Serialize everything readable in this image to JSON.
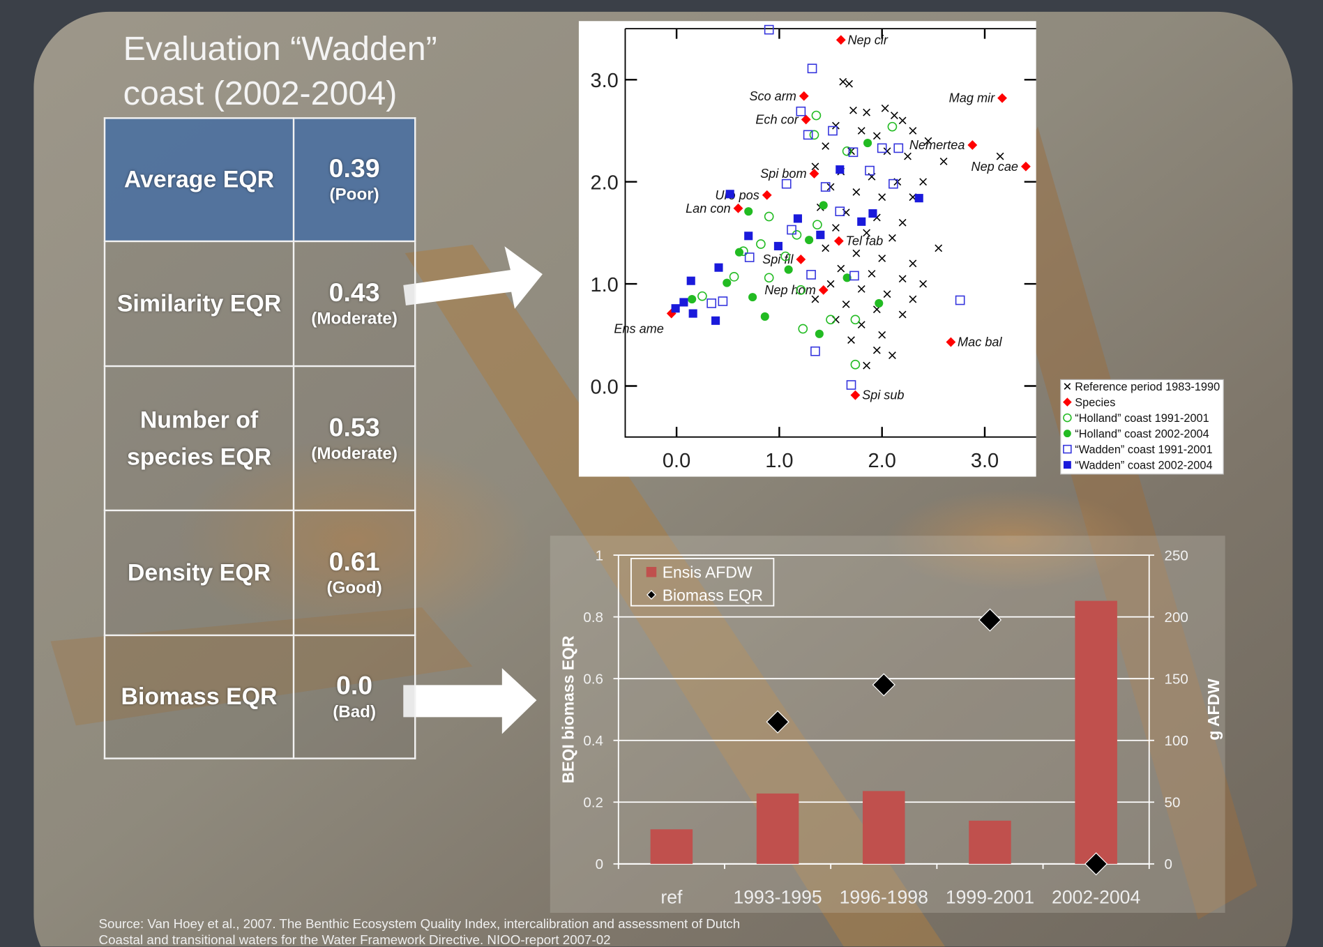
{
  "title": "Evaluation “Wadden” coast (2002-2004)",
  "table": {
    "rows": [
      [
        "Average EQR",
        "0.39",
        "(Poor)"
      ],
      [
        "Similarity EQR",
        "0.43",
        "(Moderate)"
      ],
      [
        "Number of species EQR",
        "0.53",
        "(Moderate)"
      ],
      [
        "Density EQR",
        "0.61",
        "(Good)"
      ],
      [
        "Biomass EQR",
        "0.0",
        "(Bad)"
      ]
    ]
  },
  "source": "Source: Van Hoey et al., 2007. The  Benthic Ecosystem Quality Index, intercalibration and assessment of Dutch Coastal and transitional waters for the Water Framework Directive. NIOO-report 2007-02",
  "chart_data": [
    {
      "type": "scatter",
      "xlim": [
        -0.5,
        3.5
      ],
      "ylim": [
        -0.5,
        3.5
      ],
      "xticks": [
        {
          "value": 0,
          "label": "0.0"
        },
        {
          "value": 1,
          "label": "1.0"
        },
        {
          "value": 2,
          "label": "2.0"
        },
        {
          "value": 3,
          "label": "3.0"
        }
      ],
      "yticks": [
        {
          "value": 0,
          "label": "0.0"
        },
        {
          "value": 1,
          "label": "1.0"
        },
        {
          "value": 2,
          "label": "2.0"
        },
        {
          "value": 3,
          "label": "3.0"
        }
      ],
      "series": [
        {
          "name": "Reference period 1983-1990",
          "color": "#000000",
          "marker": "x",
          "x": [
            1.62,
            1.68,
            1.72,
            1.85,
            2.03,
            2.12,
            2.2,
            1.55,
            1.8,
            1.95,
            2.3,
            2.45,
            1.45,
            1.7,
            2.05,
            2.25,
            2.6,
            3.15,
            1.35,
            1.6,
            1.9,
            2.15,
            2.4,
            1.5,
            1.75,
            2.0,
            2.3,
            1.4,
            1.65,
            1.95,
            2.2,
            1.55,
            1.85,
            2.1,
            2.55,
            1.45,
            1.75,
            2.0,
            2.3,
            1.6,
            1.9,
            2.2,
            2.4,
            1.5,
            1.8,
            2.05,
            2.3,
            1.35,
            1.65,
            1.95,
            2.2,
            1.55,
            1.8,
            2.0,
            1.7,
            1.95,
            2.1,
            1.85
          ],
          "y": [
            2.98,
            2.96,
            2.7,
            2.68,
            2.72,
            2.65,
            2.6,
            2.55,
            2.5,
            2.45,
            2.5,
            2.4,
            2.35,
            2.3,
            2.3,
            2.25,
            2.2,
            2.25,
            2.15,
            2.1,
            2.05,
            2.0,
            2.0,
            1.95,
            1.9,
            1.85,
            1.85,
            1.75,
            1.7,
            1.65,
            1.6,
            1.55,
            1.5,
            1.45,
            1.35,
            1.35,
            1.3,
            1.25,
            1.2,
            1.15,
            1.1,
            1.05,
            1.0,
            1.0,
            0.95,
            0.9,
            0.85,
            0.85,
            0.8,
            0.75,
            0.7,
            0.65,
            0.6,
            0.5,
            0.45,
            0.35,
            0.3,
            0.2
          ]
        },
        {
          "name": "Species",
          "color": "#ff0000",
          "marker": "diamond",
          "labels": [
            "Nep cir",
            "Sco arm",
            "Mag mir",
            "Ech cor",
            "Nemertea",
            "Nep cae",
            "Spi bom",
            "Uro pos",
            "Lan con",
            "Tel fab",
            "Spi fil",
            "Nep hom",
            "Ens ame",
            "Mac bal",
            "Spi sub"
          ],
          "x": [
            1.6,
            1.24,
            3.17,
            1.26,
            2.88,
            3.4,
            1.34,
            0.88,
            0.6,
            1.58,
            1.21,
            1.43,
            -0.05,
            2.67,
            1.74
          ],
          "y": [
            3.39,
            2.84,
            2.82,
            2.61,
            2.36,
            2.15,
            2.08,
            1.87,
            1.74,
            1.42,
            1.24,
            0.94,
            0.71,
            0.43,
            -0.09
          ]
        },
        {
          "name": "“Holland” coast 1991-2001",
          "color": "#22bb22",
          "marker": "circle-open",
          "x": [
            1.36,
            1.34,
            2.1,
            1.66,
            0.9,
            1.17,
            1.37,
            0.65,
            0.56,
            0.25,
            0.9,
            1.21,
            1.74,
            1.23,
            1.5,
            1.74,
            1.06,
            0.82
          ],
          "y": [
            2.65,
            2.46,
            2.54,
            2.3,
            1.66,
            1.48,
            1.58,
            1.32,
            1.07,
            0.88,
            1.06,
            0.94,
            0.21,
            0.56,
            0.65,
            0.65,
            1.27,
            1.39
          ]
        },
        {
          "name": "“Holland” coast 2002-2004",
          "color": "#22bb22",
          "marker": "circle",
          "x": [
            0.7,
            1.86,
            1.43,
            1.29,
            1.66,
            0.49,
            0.74,
            0.15,
            0.86,
            1.39,
            1.97,
            1.09,
            0.61
          ],
          "y": [
            1.71,
            2.38,
            1.77,
            1.43,
            1.06,
            1.01,
            0.87,
            0.85,
            0.68,
            0.51,
            0.81,
            1.14,
            1.31
          ]
        },
        {
          "name": "“Wadden” coast 1991-2001",
          "color": "#3333dd",
          "marker": "square-open",
          "x": [
            0.9,
            1.32,
            1.21,
            1.28,
            1.52,
            1.72,
            1.07,
            1.45,
            2.11,
            1.59,
            1.88,
            0.71,
            1.12,
            1.31,
            1.73,
            0.45,
            0.34,
            2.76,
            1.35,
            1.7,
            2.0,
            2.16
          ],
          "y": [
            3.49,
            3.11,
            2.69,
            2.46,
            2.5,
            2.29,
            1.98,
            1.95,
            1.98,
            1.71,
            2.11,
            1.26,
            1.53,
            1.09,
            1.08,
            0.83,
            0.81,
            0.84,
            0.34,
            0.01,
            2.33,
            2.33
          ]
        },
        {
          "name": "“Wadden” coast 2002-2004",
          "color": "#1a1adb",
          "marker": "square",
          "x": [
            0.52,
            1.59,
            2.36,
            1.18,
            0.7,
            0.99,
            1.4,
            1.8,
            1.91,
            0.41,
            0.14,
            0.07,
            -0.01,
            0.16,
            0.38
          ],
          "y": [
            1.88,
            2.12,
            1.84,
            1.64,
            1.47,
            1.37,
            1.48,
            1.61,
            1.69,
            1.16,
            1.03,
            0.82,
            0.76,
            0.71,
            0.64
          ]
        }
      ]
    },
    {
      "type": "bar",
      "categories": [
        "ref",
        "1993-1995",
        "1996-1998",
        "1999-2001",
        "2002-2004"
      ],
      "ylabel": "BEQI biomass EQR",
      "y2label": "g AFDW",
      "ylim": [
        0,
        1
      ],
      "yticks": [
        0,
        0.2,
        0.4,
        0.6,
        0.8,
        1
      ],
      "y2lim": [
        0,
        250
      ],
      "y2ticks": [
        0,
        50,
        100,
        150,
        200,
        250
      ],
      "grid": true,
      "series": [
        {
          "name": "Ensis AFDW",
          "color": "#c0504d",
          "marker": "bar",
          "axis": "y2",
          "values": [
            28,
            57,
            59,
            35,
            213
          ]
        },
        {
          "name": "Biomass EQR",
          "color": "#000000",
          "marker": "diamond",
          "values": [
            null,
            0.46,
            0.58,
            0.79,
            0
          ]
        }
      ]
    }
  ]
}
